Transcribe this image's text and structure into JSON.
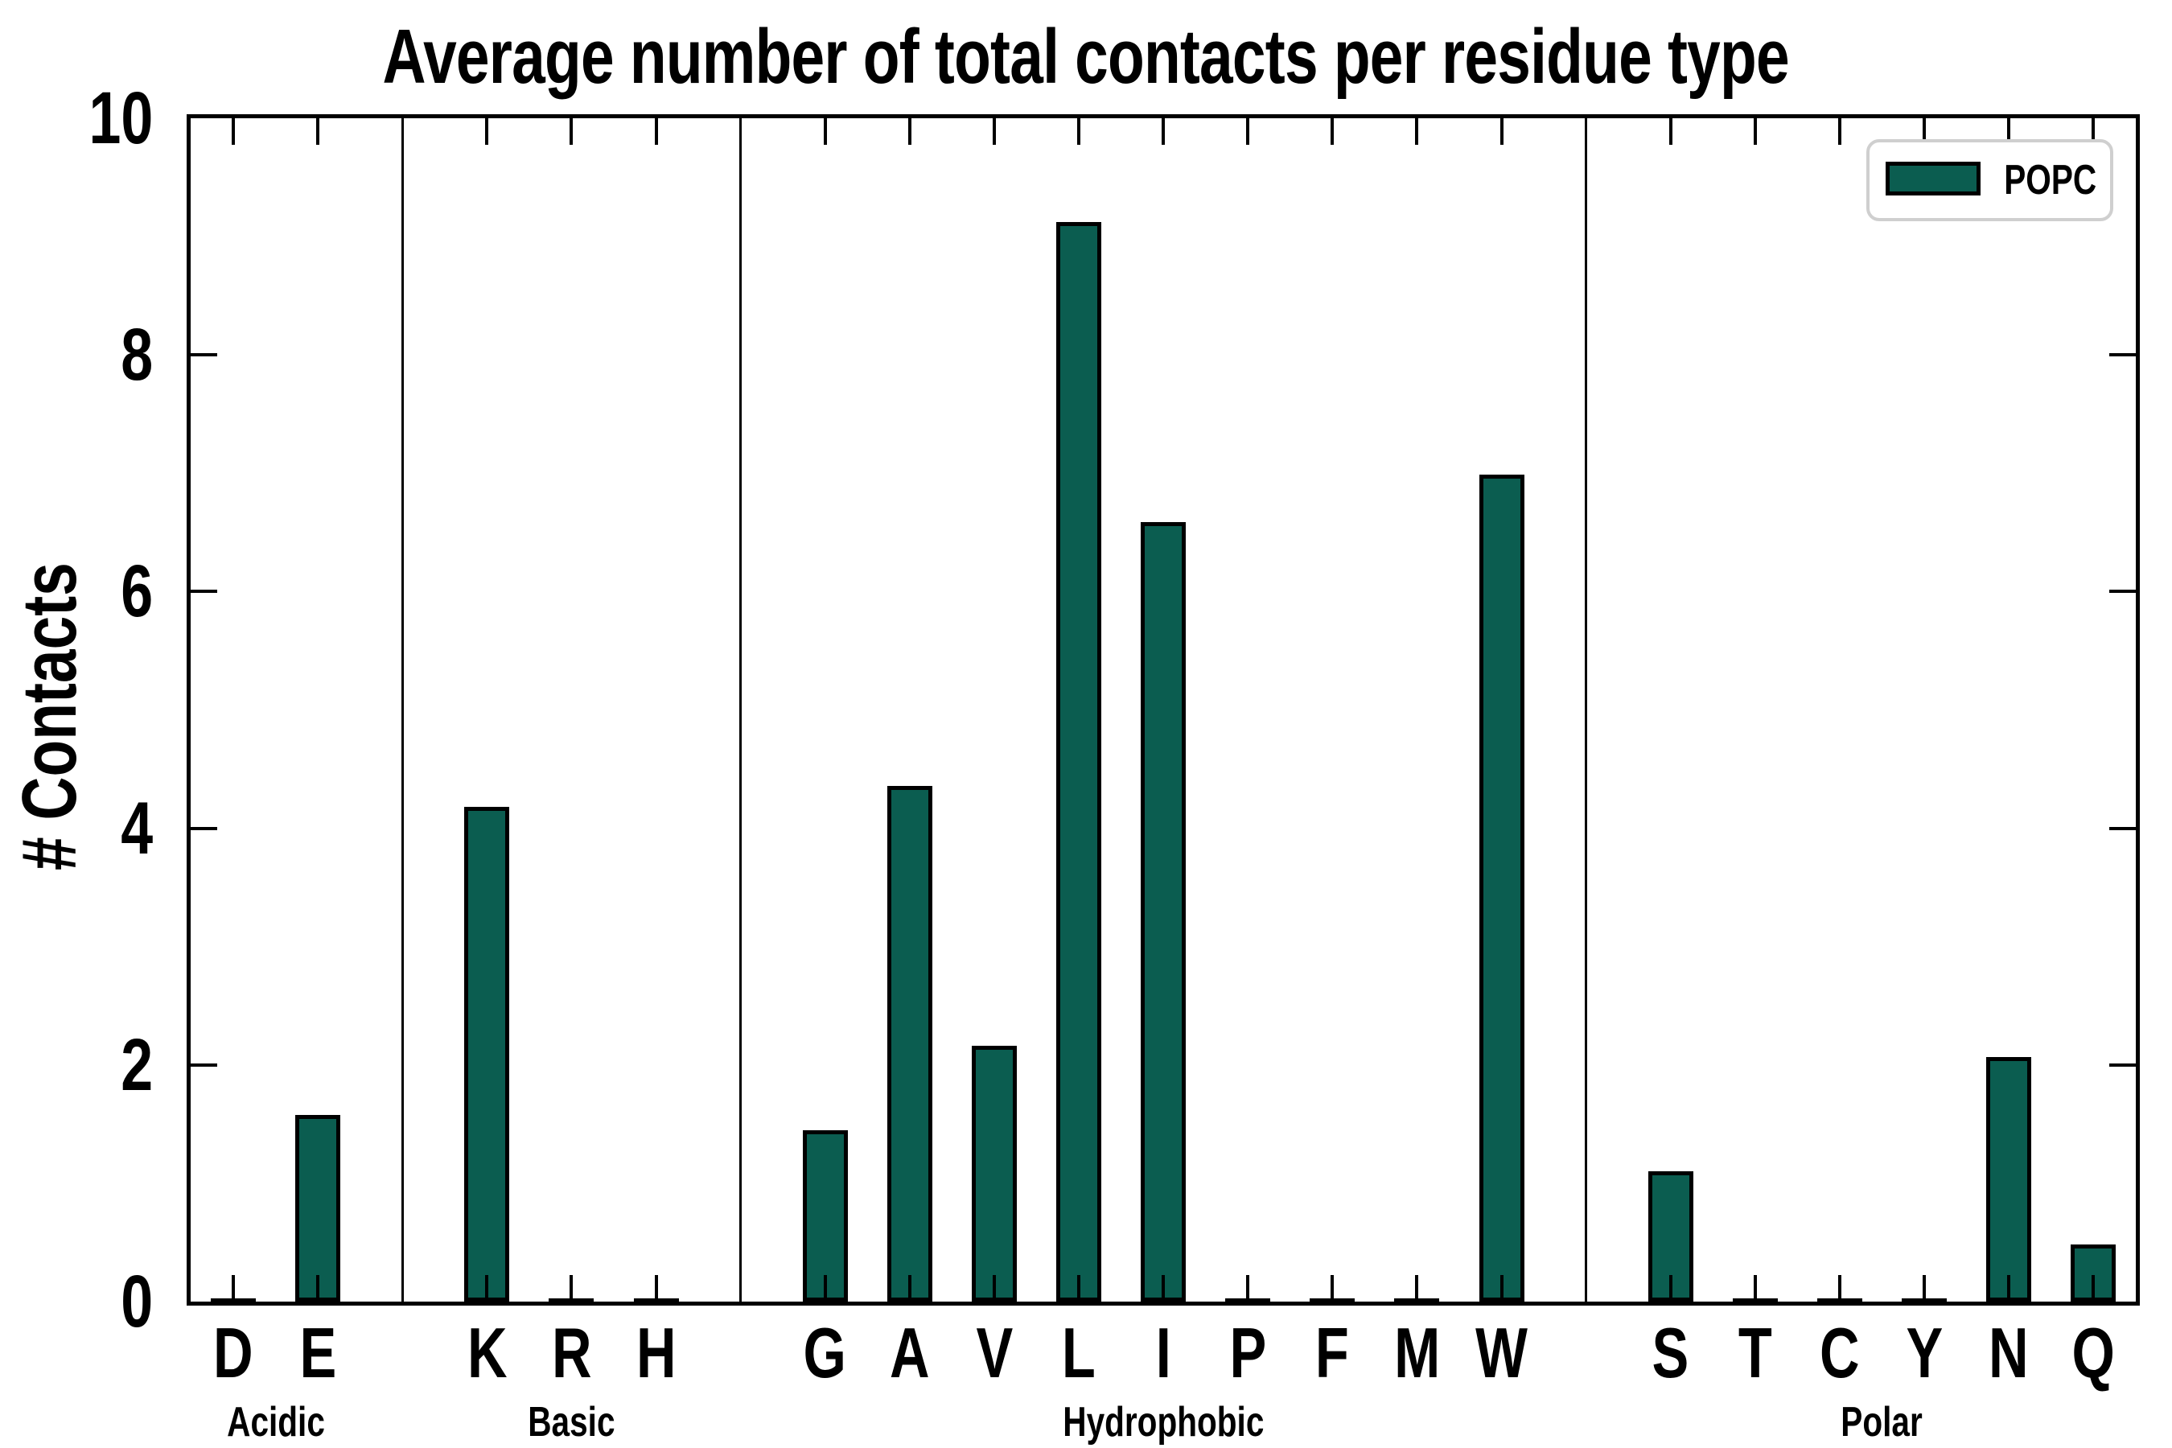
{
  "chart_data": {
    "type": "bar",
    "title": "Average number of total contacts per residue type",
    "xlabel": "",
    "ylabel": "# Contacts",
    "ylim": [
      0,
      10
    ],
    "yticks": [
      0,
      2,
      4,
      6,
      8,
      10
    ],
    "legend": [
      "POPC"
    ],
    "legend_position": "upper right",
    "bar_color": "#0b5d50",
    "bar_edge_color": "#000000",
    "grid": false,
    "groups": [
      {
        "label": "Acidic",
        "residues": [
          "D",
          "E"
        ],
        "values": [
          0.03,
          1.58
        ]
      },
      {
        "label": "Basic",
        "residues": [
          "K",
          "R",
          "H"
        ],
        "values": [
          4.18,
          0.03,
          0.03
        ]
      },
      {
        "label": "Hydrophobic",
        "residues": [
          "G",
          "A",
          "V",
          "L",
          "I",
          "P",
          "F",
          "M",
          "W"
        ],
        "values": [
          1.45,
          4.36,
          2.16,
          9.12,
          6.59,
          0.03,
          0.03,
          0.03,
          6.99
        ]
      },
      {
        "label": "Polar",
        "residues": [
          "S",
          "T",
          "C",
          "Y",
          "N",
          "Q"
        ],
        "values": [
          1.1,
          0.03,
          0.03,
          0.03,
          2.07,
          0.48
        ]
      }
    ],
    "categories": [
      "D",
      "E",
      "K",
      "R",
      "H",
      "G",
      "A",
      "V",
      "L",
      "I",
      "P",
      "F",
      "M",
      "W",
      "S",
      "T",
      "C",
      "Y",
      "N",
      "Q"
    ],
    "values": [
      0.03,
      1.58,
      4.18,
      0.03,
      0.03,
      1.45,
      4.36,
      2.16,
      9.12,
      6.59,
      0.03,
      0.03,
      0.03,
      6.99,
      1.1,
      0.03,
      0.03,
      0.03,
      2.07,
      0.48
    ]
  }
}
